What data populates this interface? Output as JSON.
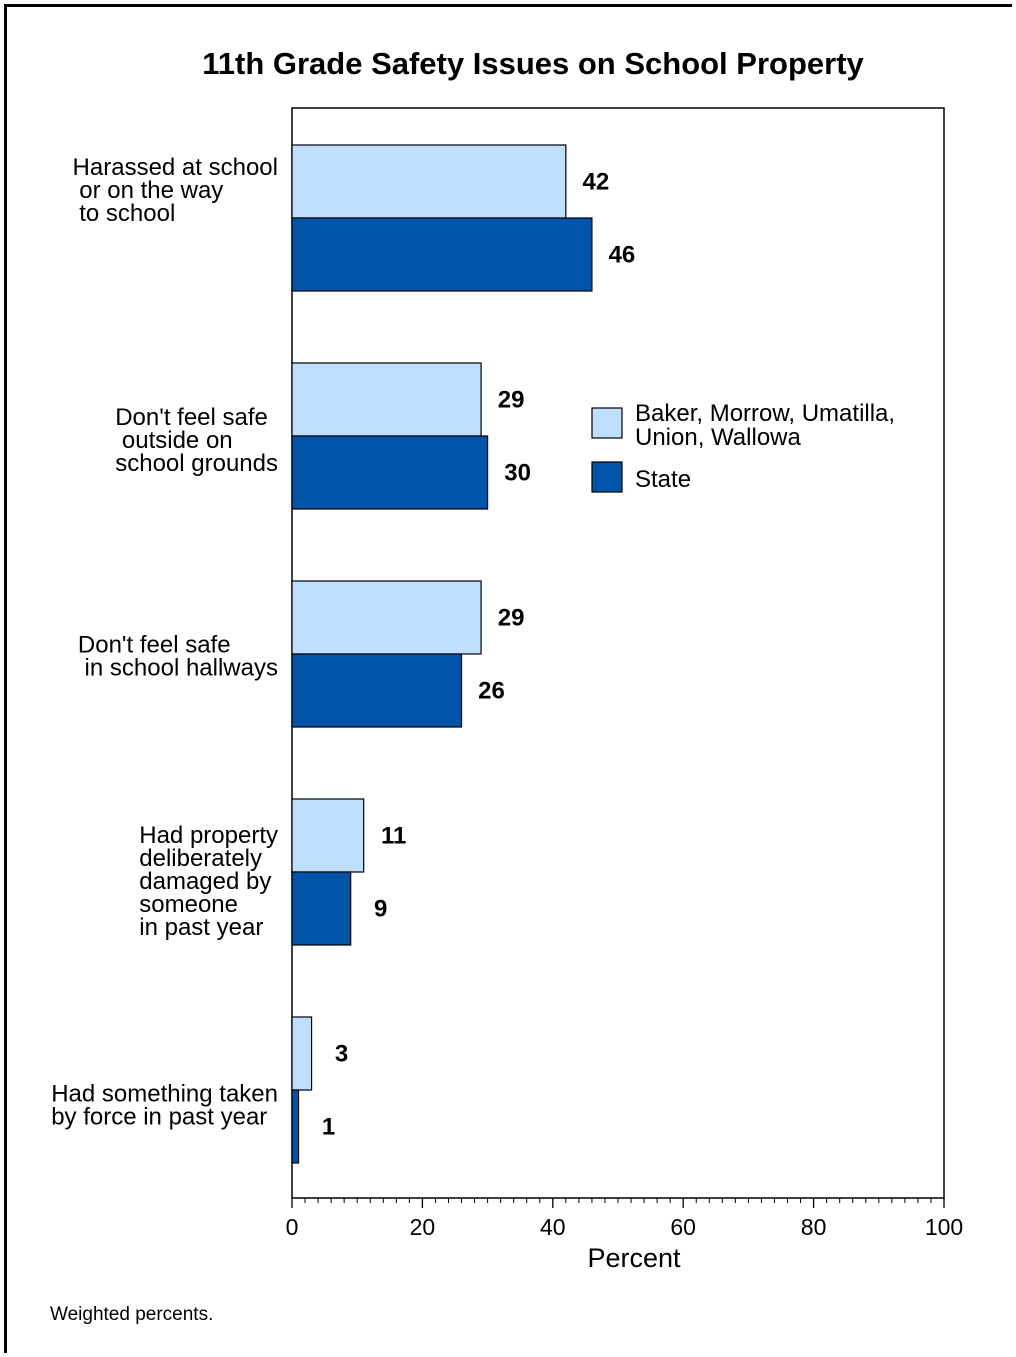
{
  "chart_data": {
    "type": "bar",
    "orientation": "horizontal",
    "title": "11th Grade Safety Issues on School Property",
    "xlabel": "Percent",
    "xlim": [
      0,
      100
    ],
    "xticks": [
      0,
      20,
      40,
      60,
      80,
      100
    ],
    "categories": [
      [
        "Harassed at school",
        " or on the way",
        "  to school"
      ],
      [
        "Don't feel safe",
        "  outside on",
        "school grounds"
      ],
      [
        "Don't feel safe",
        "  in school hallways"
      ],
      [
        "Had property",
        "deliberately",
        "damaged by",
        "someone",
        "in past year"
      ],
      [
        "Had something taken",
        "by force in past year"
      ]
    ],
    "series": [
      {
        "name": "Baker, Morrow, Umatilla, Union, Wallowa",
        "color": "#bfdfff",
        "values": [
          42,
          29,
          29,
          11,
          3
        ]
      },
      {
        "name": "State",
        "color": "#0055aa",
        "values": [
          46,
          30,
          26,
          9,
          1
        ]
      }
    ],
    "legend": {
      "position": "right",
      "entries": [
        [
          "Baker, Morrow, Umatilla,",
          "Union, Wallowa"
        ],
        [
          "State"
        ]
      ]
    },
    "grid": false
  },
  "footnote": "Weighted percents."
}
